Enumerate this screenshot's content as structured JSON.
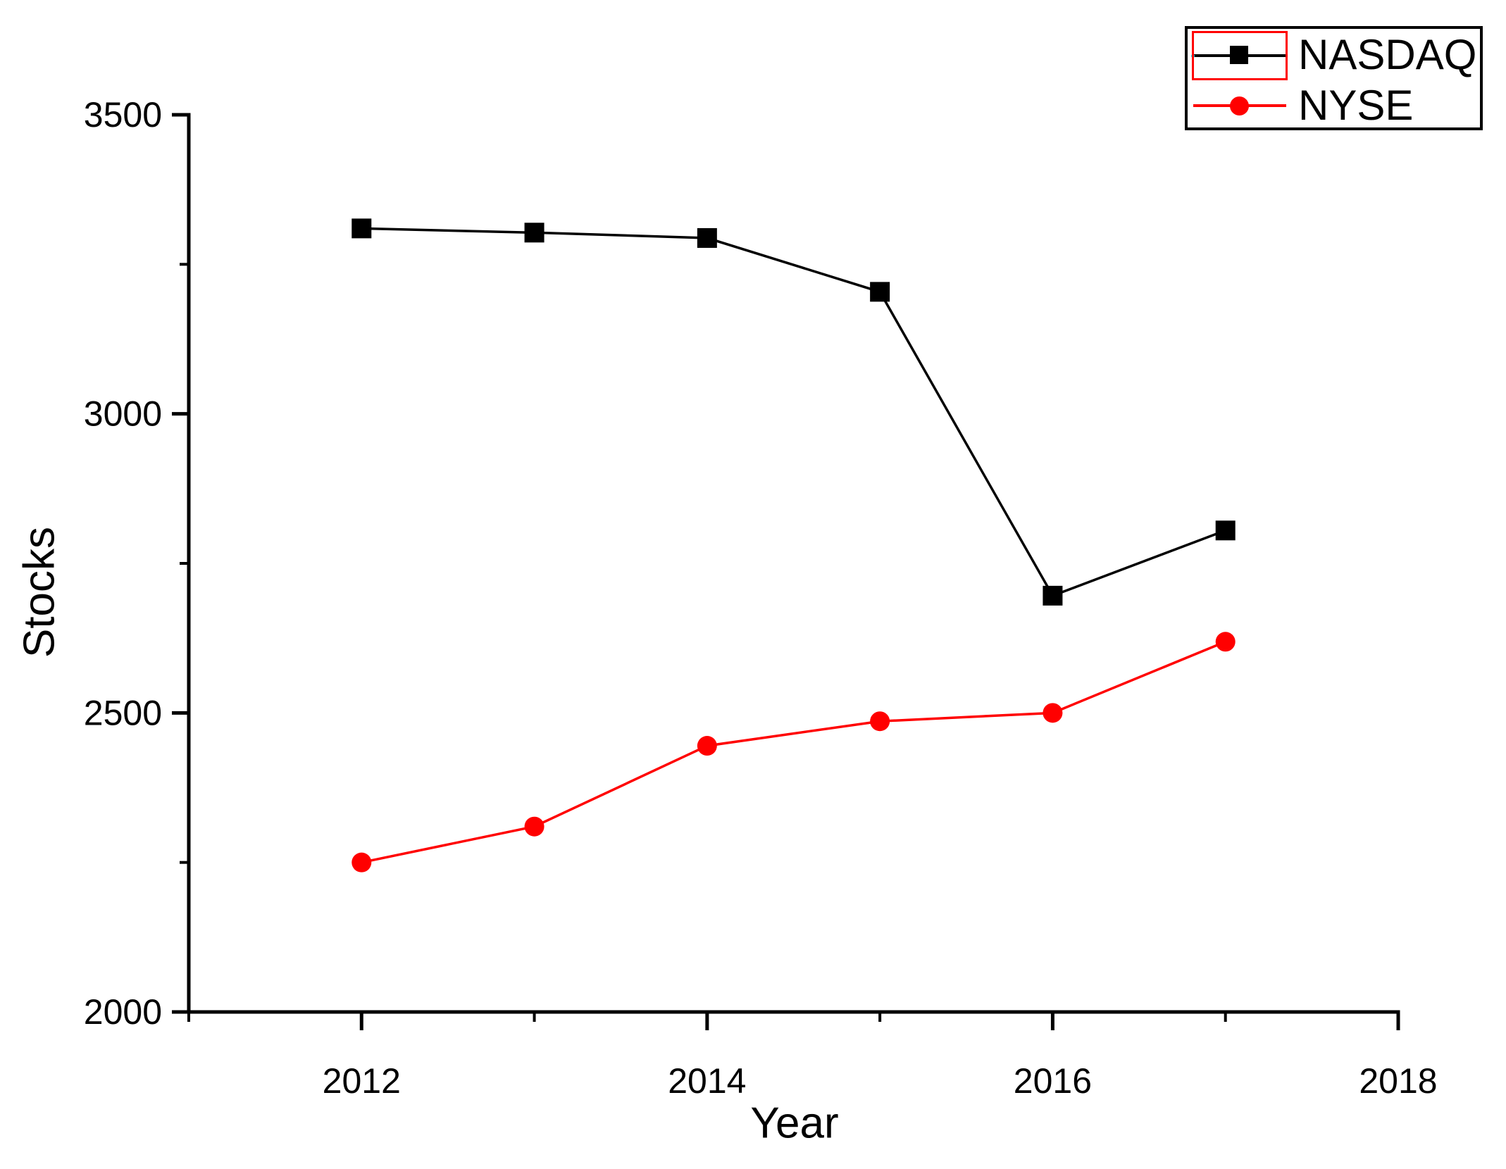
{
  "figure": {
    "background": "#ffffff",
    "axis_color": "#000000",
    "text_color": "#000000"
  },
  "chart_data": {
    "type": "line",
    "title": "",
    "xlabel": "Year",
    "ylabel": "Stocks",
    "x": [
      2012,
      2013,
      2014,
      2015,
      2016,
      2017
    ],
    "series": [
      {
        "name": "NASDAQ",
        "color": "#000000",
        "marker": "square",
        "values": [
          3310,
          3303,
          3294,
          3204,
          2696,
          2805
        ],
        "selected": true
      },
      {
        "name": "NYSE",
        "color": "#ff0000",
        "marker": "circle",
        "values": [
          2250,
          2310,
          2445,
          2486,
          2500,
          2619
        ],
        "selected": false
      }
    ],
    "xlim": [
      2011,
      2018
    ],
    "ylim": [
      2000,
      3500
    ],
    "x_major_ticks": [
      2012,
      2014,
      2016,
      2018
    ],
    "x_minor_ticks": [
      2011,
      2013,
      2015,
      2017
    ],
    "y_major_ticks": [
      2000,
      2500,
      3000,
      3500
    ],
    "y_minor_ticks": [
      2250,
      2750,
      3250
    ],
    "grid": false,
    "legend_position": "top-right"
  },
  "legend": {
    "selection_color": "#ff0000",
    "anchor_dot_color": "#00e5ff",
    "items": [
      {
        "label": "NASDAQ",
        "selected": true
      },
      {
        "label": "NYSE",
        "selected": false
      }
    ]
  }
}
